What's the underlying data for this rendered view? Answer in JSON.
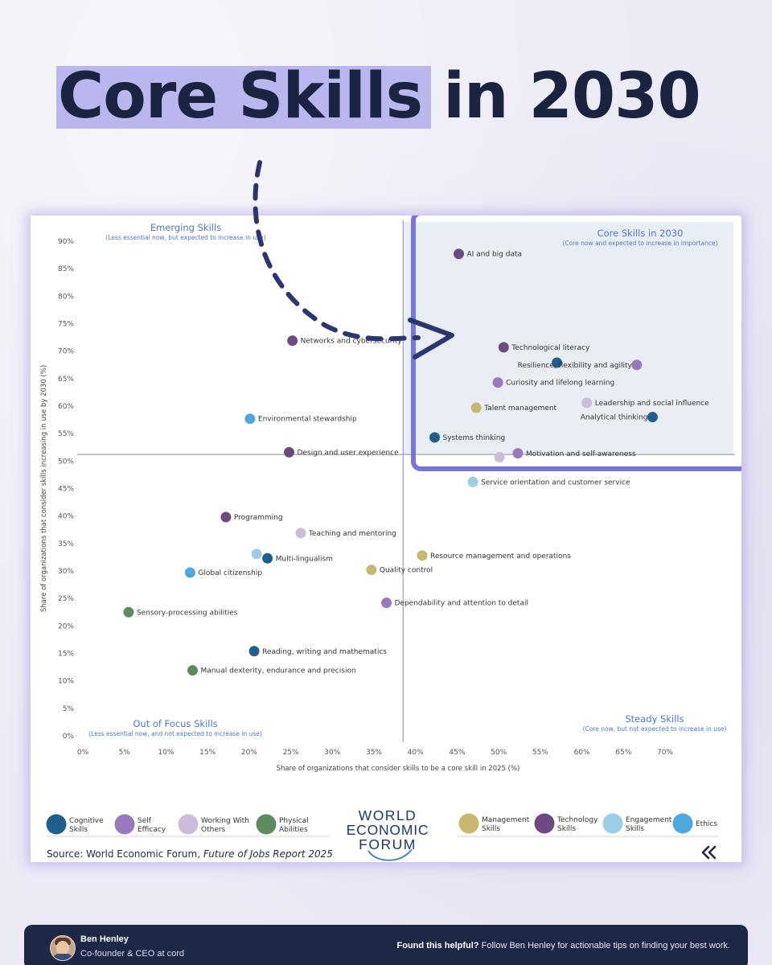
{
  "headline": {
    "highlighted": "Core Skills",
    "rest": " in 2030"
  },
  "chart_data": {
    "type": "scatter",
    "xlabel": "Share of organizations that consider skills to be a core skill in 2025 (%)",
    "ylabel": "Share of organizations that consider skills increasing in use by 2030 (%)",
    "xlim": [
      0,
      70
    ],
    "ylim": [
      0,
      90
    ],
    "x_ticks": [
      "0%",
      "5%",
      "10%",
      "15%",
      "20%",
      "25%",
      "30%",
      "35%",
      "40%",
      "45%",
      "50%",
      "55%",
      "60%",
      "65%",
      "70%"
    ],
    "y_ticks": [
      "0%",
      "5%",
      "10%",
      "15%",
      "20%",
      "25%",
      "30%",
      "35%",
      "40%",
      "45%",
      "50%",
      "55%",
      "60%",
      "65%",
      "70%",
      "75%",
      "80%",
      "85%",
      "90%"
    ],
    "divider": {
      "x": 38.5,
      "y": 51.2
    },
    "grid": false,
    "quadrants": [
      {
        "title": "Emerging Skills",
        "subtitle": "(Less essential now, but expected to increase in use)"
      },
      {
        "title": "Core Skills in 2030",
        "subtitle": "(Core now and expected to increase in importance)"
      },
      {
        "title": "Out of Focus Skills",
        "subtitle": "(Less essential now, and not expected to increase in use)"
      },
      {
        "title": "Steady Skills",
        "subtitle": "(Core now, but not expected to increase in use)"
      }
    ],
    "categories": [
      {
        "name": "Cognitive Skills",
        "color": "#1f5f8b"
      },
      {
        "name": "Self Efficacy",
        "color": "#9a78bd"
      },
      {
        "name": "Working With Others",
        "color": "#ccbcd9"
      },
      {
        "name": "Physical Abilities",
        "color": "#5d8a5e"
      },
      {
        "name": "Management Skills",
        "color": "#c8b76f"
      },
      {
        "name": "Technology Skills",
        "color": "#6d4b80"
      },
      {
        "name": "Engagement Skills",
        "color": "#9ccde6"
      },
      {
        "name": "Ethics",
        "color": "#4fa8dc"
      }
    ],
    "points": [
      {
        "label": "AI and big data",
        "x": 45.2,
        "y": 87.7,
        "category": "Technology Skills"
      },
      {
        "label": "Networks and cybersecurity",
        "x": 25.2,
        "y": 71.9,
        "category": "Technology Skills"
      },
      {
        "label": "Technological literacy",
        "x": 50.6,
        "y": 70.7,
        "category": "Technology Skills"
      },
      {
        "label": "",
        "x": 57.0,
        "y": 67.9,
        "category": "Cognitive Skills"
      },
      {
        "label": "Resilience, flexibility and agility",
        "x": 66.6,
        "y": 67.5,
        "category": "Self Efficacy"
      },
      {
        "label": "Curiosity and lifelong learning",
        "x": 49.9,
        "y": 64.3,
        "category": "Self Efficacy"
      },
      {
        "label": "Leadership and social influence",
        "x": 60.6,
        "y": 60.6,
        "category": "Working With Others"
      },
      {
        "label": "Talent management",
        "x": 47.3,
        "y": 59.7,
        "category": "Management Skills"
      },
      {
        "label": "Environmental stewardship",
        "x": 20.1,
        "y": 57.7,
        "category": "Ethics"
      },
      {
        "label": "Analytical thinking",
        "x": 68.5,
        "y": 58.0,
        "category": "Cognitive Skills"
      },
      {
        "label": "Systems thinking",
        "x": 42.3,
        "y": 54.3,
        "category": "Cognitive Skills"
      },
      {
        "label": "Design and user experience",
        "x": 24.8,
        "y": 51.6,
        "category": "Technology Skills"
      },
      {
        "label": "Motivation and self-awareness",
        "x": 52.3,
        "y": 51.4,
        "category": "Self Efficacy"
      },
      {
        "label": "",
        "x": 50.1,
        "y": 50.7,
        "category": "Working With Others"
      },
      {
        "label": "Service orientation and customer service",
        "x": 46.9,
        "y": 46.2,
        "category": "Engagement Skills"
      },
      {
        "label": "Programming",
        "x": 17.2,
        "y": 39.8,
        "category": "Technology Skills"
      },
      {
        "label": "Teaching and mentoring",
        "x": 26.2,
        "y": 36.9,
        "category": "Working With Others"
      },
      {
        "label": "",
        "x": 20.9,
        "y": 33.1,
        "category": "Engagement Skills"
      },
      {
        "label": "Multi-lingualism",
        "x": 22.2,
        "y": 32.3,
        "category": "Cognitive Skills"
      },
      {
        "label": "Resource management and operations",
        "x": 40.8,
        "y": 32.8,
        "category": "Management Skills"
      },
      {
        "label": "Quality control",
        "x": 34.7,
        "y": 30.2,
        "category": "Management Skills"
      },
      {
        "label": "Global citizenship",
        "x": 12.9,
        "y": 29.7,
        "category": "Ethics"
      },
      {
        "label": "Dependability and attention to detail",
        "x": 36.5,
        "y": 24.2,
        "category": "Self Efficacy"
      },
      {
        "label": "Sensory-processing abilities",
        "x": 5.5,
        "y": 22.5,
        "category": "Physical Abilities"
      },
      {
        "label": "Reading, writing and mathematics",
        "x": 20.6,
        "y": 15.4,
        "category": "Cognitive Skills"
      },
      {
        "label": "Manual dexterity, endurance and precision",
        "x": 13.2,
        "y": 11.9,
        "category": "Physical Abilities"
      }
    ]
  },
  "brand": {
    "line1": "WORLD",
    "line2": "ECONOMIC",
    "line3": "FORUM"
  },
  "source": {
    "prefix": "Source: World Economic Forum, ",
    "report": "Future of Jobs Report 2025"
  },
  "back_icon": "double-chevron-left-icon",
  "accent_color": "#7b74d8",
  "author": {
    "name": "Ben Henley",
    "role": "Co-founder & CEO at cord"
  },
  "cta": {
    "bold": "Found this helpful?",
    "text": " Follow Ben Henley for actionable tips on finding your best work."
  }
}
